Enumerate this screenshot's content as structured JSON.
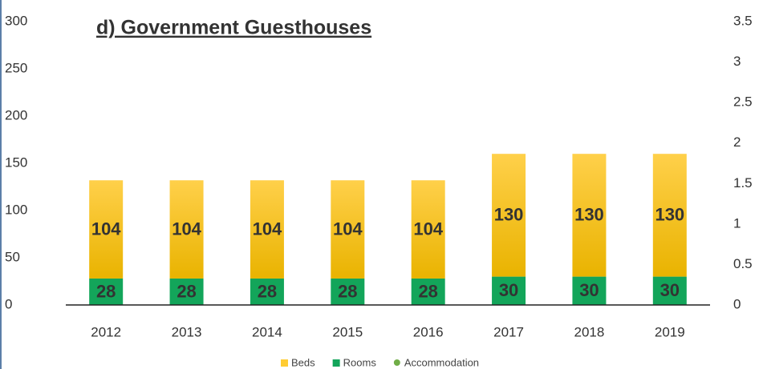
{
  "chart_data": {
    "type": "bar",
    "stacked": true,
    "title": "d) Government Guesthouses",
    "categories": [
      "2012",
      "2013",
      "2014",
      "2015",
      "2016",
      "2017",
      "2018",
      "2019"
    ],
    "series": [
      {
        "name": "Rooms",
        "color": "#13a55a",
        "values": [
          28,
          28,
          28,
          28,
          28,
          30,
          30,
          30
        ]
      },
      {
        "name": "Beds",
        "color": "#f7c000",
        "values": [
          104,
          104,
          104,
          104,
          104,
          130,
          130,
          130
        ]
      },
      {
        "name": "Accommodation",
        "color": "#70ad47",
        "axis": "y2",
        "type": "line",
        "values": [
          null,
          null,
          null,
          null,
          null,
          null,
          null,
          null
        ]
      }
    ],
    "legend_order": [
      "Beds",
      "Rooms",
      "Accommodation"
    ],
    "ylim": [
      0,
      300
    ],
    "yticks": [
      0,
      50,
      100,
      150,
      200,
      250,
      300
    ],
    "y2lim": [
      0,
      3.5
    ],
    "y2ticks": [
      0,
      0.5,
      1,
      1.5,
      2,
      2.5,
      3,
      3.5
    ],
    "legend": "bottom"
  }
}
